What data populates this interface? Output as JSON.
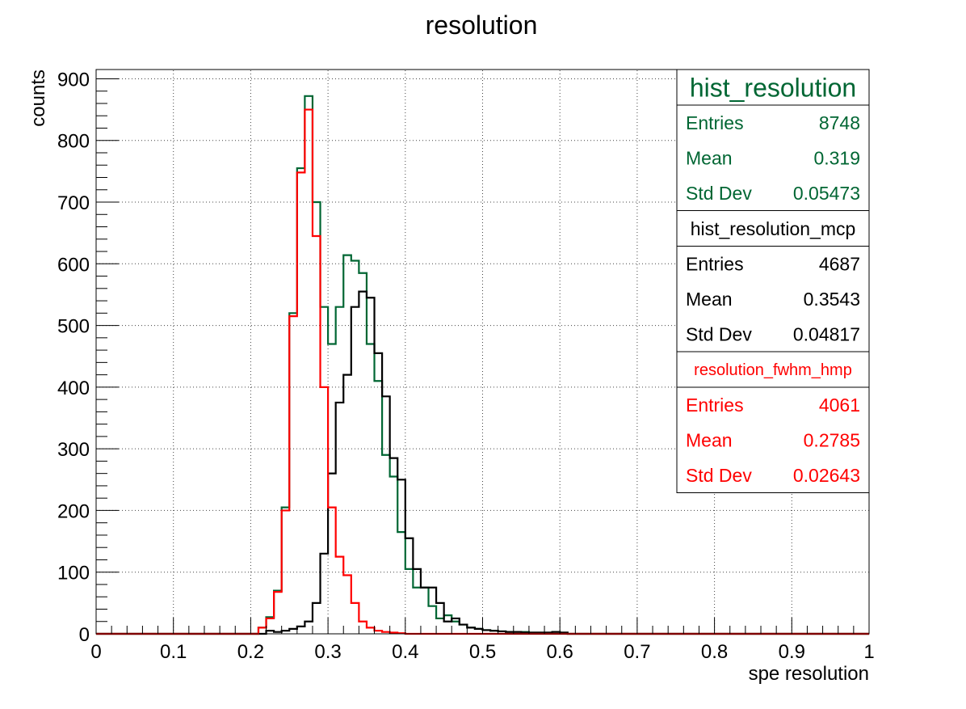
{
  "chart_data": {
    "type": "histogram",
    "title": "resolution",
    "xlabel": "spe resolution",
    "ylabel": "counts",
    "xlim": [
      0,
      1
    ],
    "ylim": [
      0,
      915
    ],
    "grid": true,
    "bins": 100,
    "x_ticks": [
      "0",
      "0.1",
      "0.2",
      "0.3",
      "0.4",
      "0.5",
      "0.6",
      "0.7",
      "0.8",
      "0.9",
      "1"
    ],
    "y_ticks": [
      "0",
      "100",
      "200",
      "300",
      "400",
      "500",
      "600",
      "700",
      "800",
      "900"
    ],
    "bin_edges_start": [
      0.21,
      0.22,
      0.23,
      0.24,
      0.25,
      0.26,
      0.27,
      0.28,
      0.29,
      0.3,
      0.31,
      0.32,
      0.33,
      0.34,
      0.35,
      0.36,
      0.37,
      0.38,
      0.39,
      0.4,
      0.41,
      0.42,
      0.43,
      0.44,
      0.45,
      0.46,
      0.47,
      0.48,
      0.49,
      0.5,
      0.51,
      0.52,
      0.53,
      0.54,
      0.55,
      0.56,
      0.57,
      0.58,
      0.59,
      0.6
    ],
    "series": [
      {
        "name": "hist_resolution",
        "color": "#006633",
        "values": [
          10,
          27,
          70,
          205,
          520,
          755,
          872,
          700,
          530,
          470,
          530,
          614,
          605,
          585,
          470,
          410,
          290,
          255,
          165,
          105,
          75,
          75,
          45,
          25,
          30,
          20,
          15,
          10,
          8,
          6,
          5,
          4,
          3,
          3,
          3,
          2,
          2,
          2,
          3,
          2
        ]
      },
      {
        "name": "hist_resolution_mcp",
        "color": "#000000",
        "values": [
          0,
          5,
          3,
          5,
          8,
          12,
          20,
          50,
          130,
          260,
          375,
          420,
          530,
          555,
          545,
          455,
          385,
          285,
          250,
          155,
          105,
          75,
          75,
          50,
          20,
          25,
          15,
          10,
          8,
          6,
          5,
          4,
          3,
          3,
          2,
          2,
          2,
          2,
          3,
          2
        ]
      },
      {
        "name": "resolution_fwhm_hmp",
        "color": "#ff0000",
        "values": [
          10,
          25,
          68,
          200,
          515,
          748,
          850,
          645,
          400,
          205,
          125,
          95,
          50,
          20,
          10,
          5,
          3,
          2,
          1,
          0,
          0,
          0,
          0,
          0,
          0,
          0,
          0,
          0,
          0,
          0,
          0,
          0,
          0,
          0,
          0,
          0,
          0,
          0,
          0,
          0
        ]
      }
    ]
  },
  "stats": [
    {
      "name": "hist_resolution",
      "color": "#006633",
      "rows": [
        {
          "label": "Entries",
          "value": "8748"
        },
        {
          "label": "Mean",
          "value": "0.319"
        },
        {
          "label": "Std Dev",
          "value": "0.05473"
        }
      ]
    },
    {
      "name": "hist_resolution_mcp",
      "color": "#000000",
      "rows": [
        {
          "label": "Entries",
          "value": "4687"
        },
        {
          "label": "Mean",
          "value": "0.3543"
        },
        {
          "label": "Std Dev",
          "value": "0.04817"
        }
      ]
    },
    {
      "name": "resolution_fwhm_hmp",
      "color": "#ff0000",
      "rows": [
        {
          "label": "Entries",
          "value": "4061"
        },
        {
          "label": "Mean",
          "value": "0.2785"
        },
        {
          "label": "Std Dev",
          "value": "0.02643"
        }
      ]
    }
  ]
}
